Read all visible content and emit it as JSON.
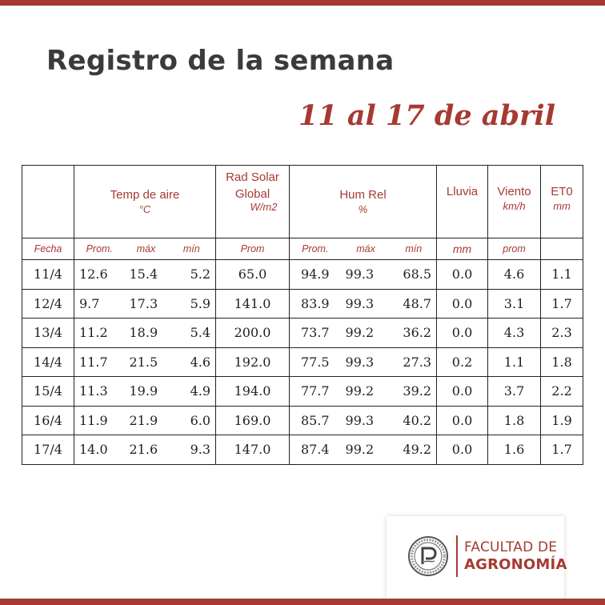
{
  "page": {
    "title": "Registro de la semana",
    "subtitle": "11 al 17 de abril"
  },
  "table": {
    "headers": {
      "temp": "Temp de aire",
      "temp_unit": "°C",
      "rad_line1": "Rad Solar",
      "rad_line2": "Global",
      "rad_unit": "W/m2",
      "hum": "Hum Rel",
      "hum_unit": "%",
      "lluvia": "Lluvia",
      "viento": "Viento",
      "viento_unit": "km/h",
      "et0": "ET0",
      "et0_unit": "mm"
    },
    "subheaders": {
      "fecha": "Fecha",
      "temp_prom": "Prom.",
      "temp_max": "máx",
      "temp_min": "mín",
      "rad_prom": "Prom",
      "hum_prom": "Prom.",
      "hum_max": "máx",
      "hum_min": "mín",
      "lluvia_unit": "mm",
      "viento_prom": "prom",
      "et0": ""
    },
    "rows": [
      [
        "11/4",
        "12.6",
        "15.4",
        "5.2",
        "65.0",
        "94.9",
        "99.3",
        "68.5",
        "0.0",
        "4.6",
        "1.1"
      ],
      [
        "12/4",
        "9.7",
        "17.3",
        "5.9",
        "141.0",
        "83.9",
        "99.3",
        "48.7",
        "0.0",
        "3.1",
        "1.7"
      ],
      [
        "13/4",
        "11.2",
        "18.9",
        "5.4",
        "200.0",
        "73.7",
        "99.2",
        "36.2",
        "0.0",
        "4.3",
        "2.3"
      ],
      [
        "14/4",
        "11.7",
        "21.5",
        "4.6",
        "192.0",
        "77.5",
        "99.3",
        "27.3",
        "0.2",
        "1.1",
        "1.8"
      ],
      [
        "15/4",
        "11.3",
        "19.9",
        "4.9",
        "194.0",
        "77.7",
        "99.2",
        "39.2",
        "0.0",
        "3.7",
        "2.2"
      ],
      [
        "16/4",
        "11.9",
        "21.9",
        "6.0",
        "169.0",
        "85.7",
        "99.3",
        "40.2",
        "0.0",
        "1.8",
        "1.9"
      ],
      [
        "17/4",
        "14.0",
        "21.6",
        "9.3",
        "147.0",
        "87.4",
        "99.2",
        "49.2",
        "0.0",
        "1.6",
        "1.7"
      ]
    ]
  },
  "logo": {
    "line1": "FACULTAD DE",
    "line2": "AGRONOMÍA",
    "seal_icon": "university-seal-icon"
  },
  "colors": {
    "accent": "#a63a32",
    "text": "#3b3b3b"
  }
}
